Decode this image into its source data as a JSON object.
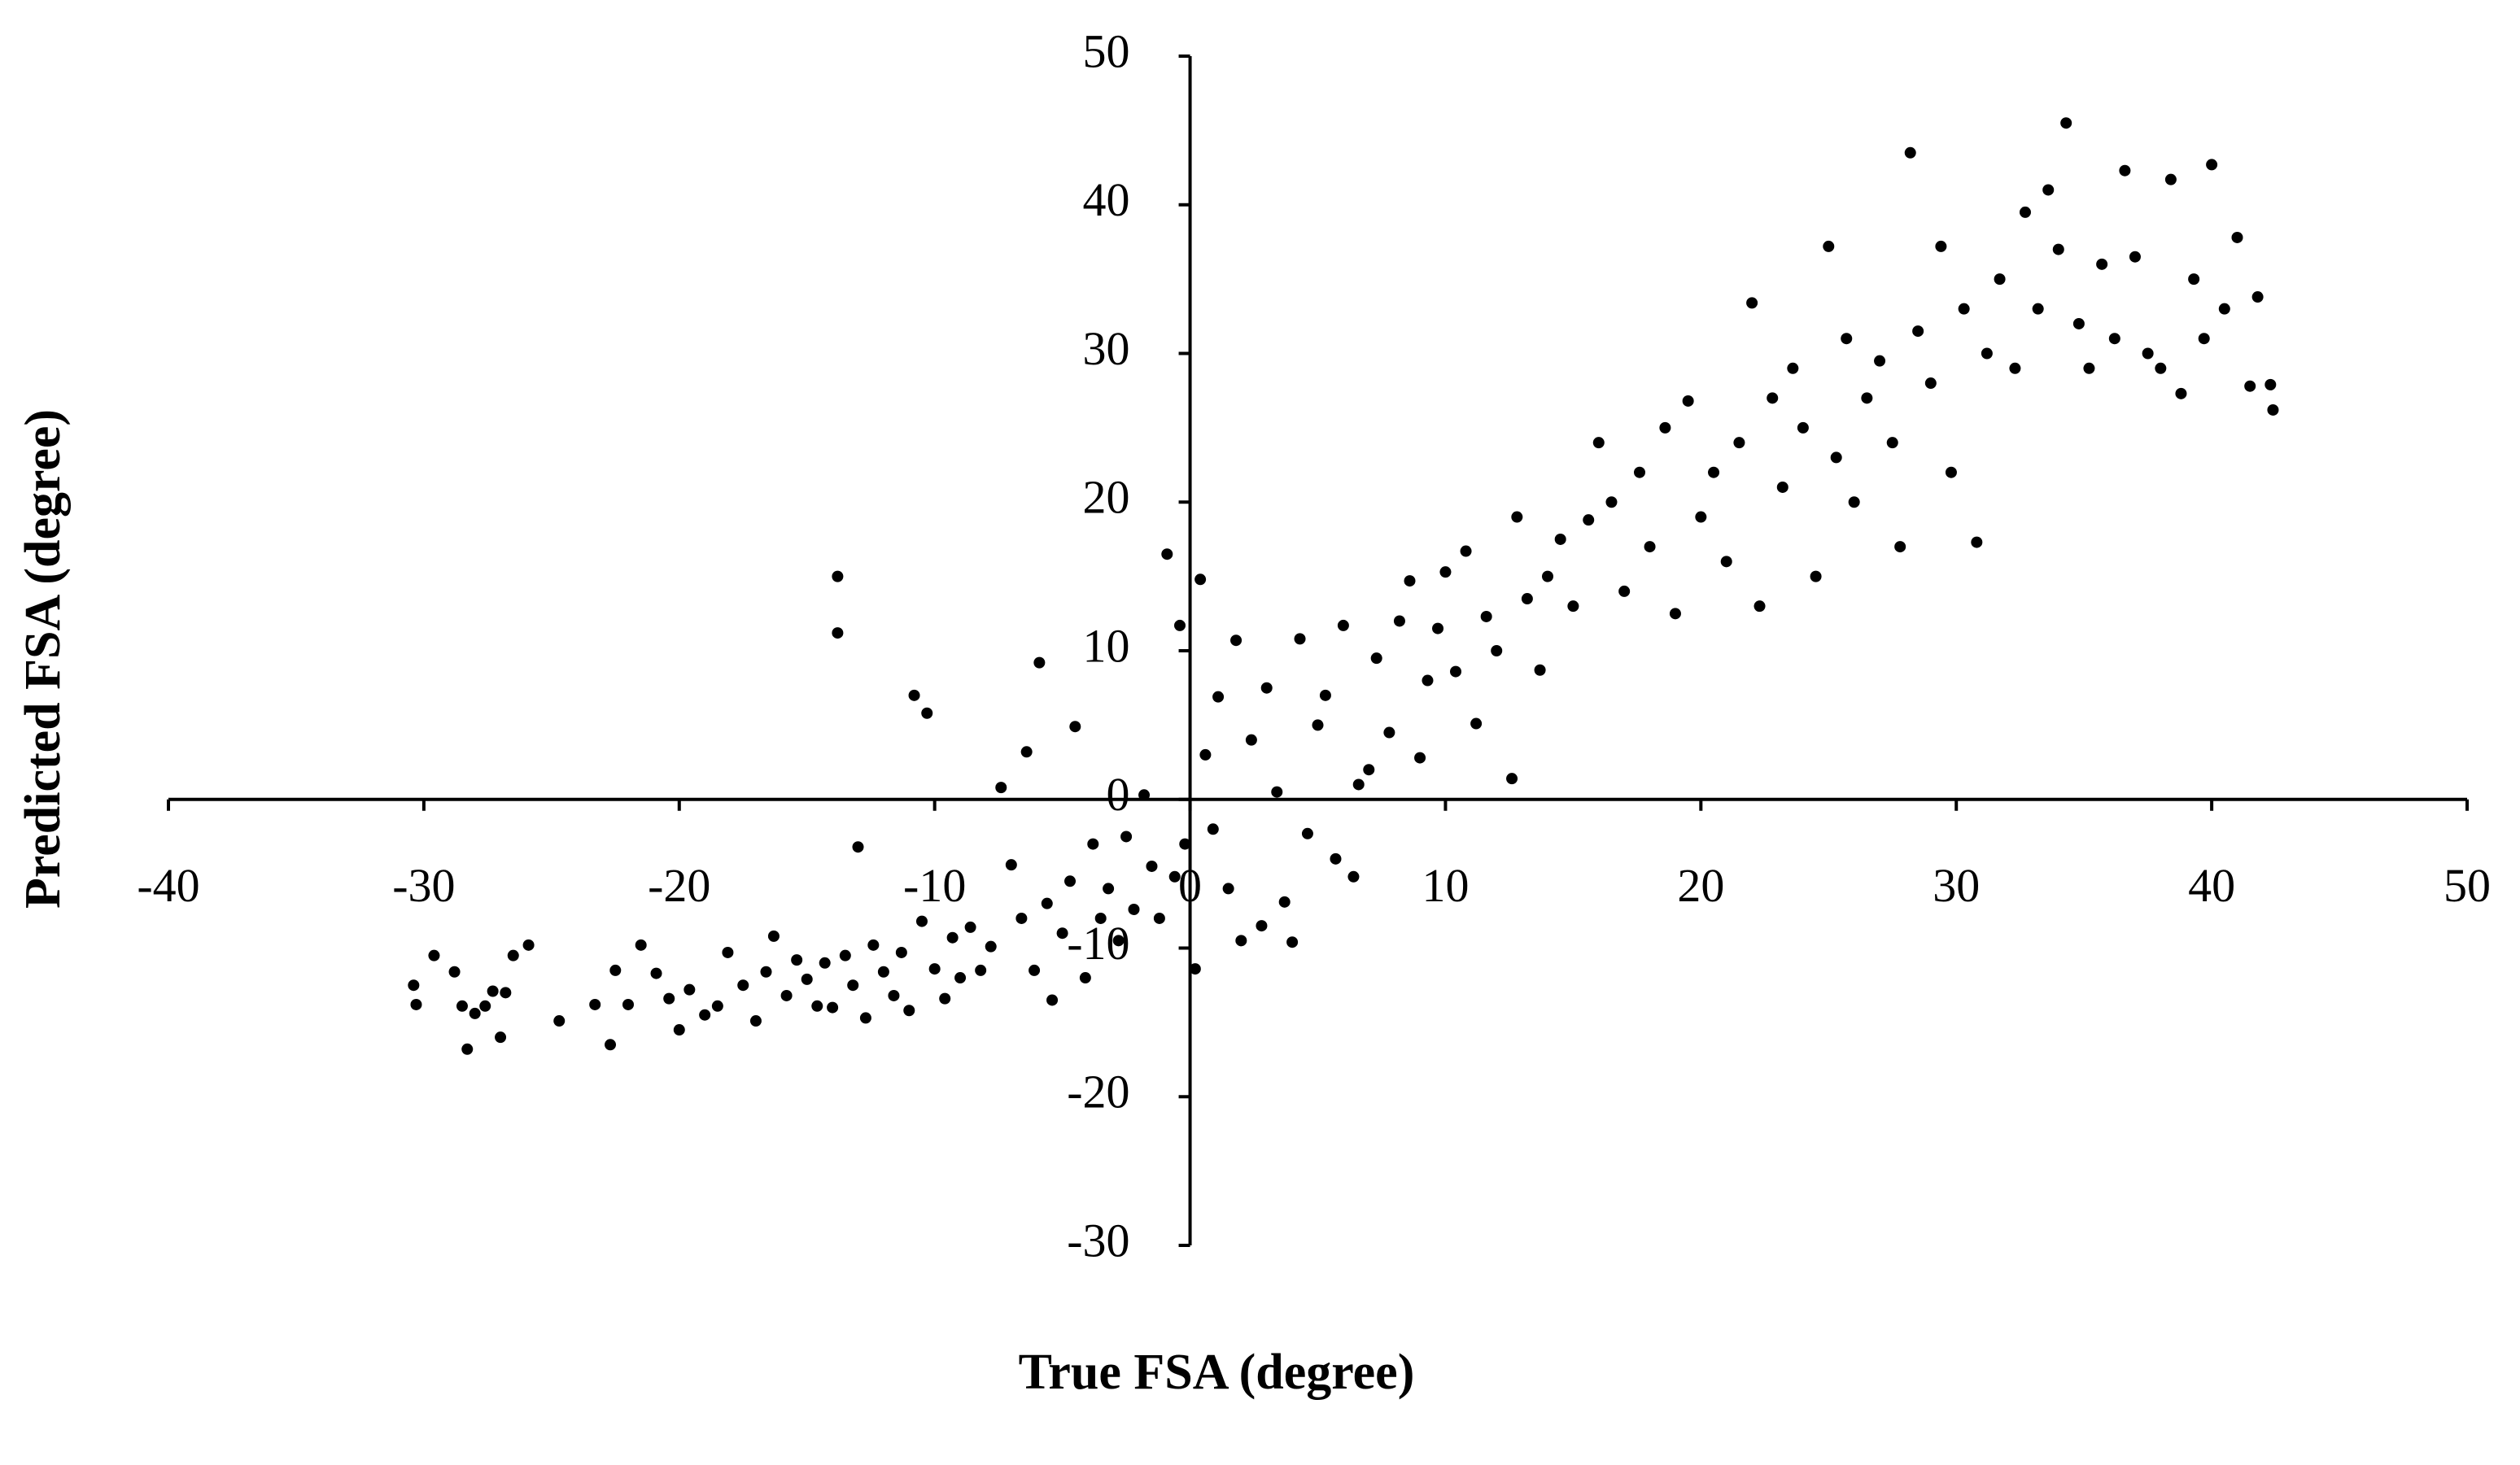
{
  "chart_data": {
    "type": "scatter",
    "x_label": "True FSA (degree)",
    "y_label": "Predicted FSA (degree)",
    "color": "#000000",
    "xlim": [
      -40,
      50
    ],
    "xticks": [
      -40,
      -30,
      -20,
      -10,
      0,
      10,
      20,
      30,
      40,
      50
    ],
    "ylim": [
      -30,
      50
    ],
    "yticks": [
      -30,
      -20,
      -10,
      0,
      10,
      20,
      30,
      40,
      50
    ],
    "grid": false,
    "x": [
      -30.4,
      -30.3,
      -29.6,
      -28.8,
      -28.5,
      -28.3,
      -28,
      -27.6,
      -27.3,
      -27,
      -26.8,
      -26.5,
      -25.9,
      -24.7,
      -23.3,
      -22.7,
      -22.5,
      -22,
      -21.5,
      -20.9,
      -20.4,
      -20,
      -19.6,
      -19,
      -18.5,
      -18.1,
      -17.5,
      -17,
      -16.6,
      -16.3,
      -15.8,
      -15.4,
      -15,
      -14.6,
      -14.3,
      -14,
      -13.8,
      -13.8,
      -13.5,
      -13.2,
      -13,
      -12.7,
      -12.4,
      -12,
      -11.6,
      -11.3,
      -11,
      -10.8,
      -10.5,
      -10.3,
      -10,
      -9.6,
      -9.3,
      -9,
      -8.6,
      -8.2,
      -7.8,
      -7.4,
      -7,
      -6.6,
      -6.4,
      -6.1,
      -5.9,
      -5.6,
      -5.4,
      -5,
      -4.7,
      -4.5,
      -4.1,
      -3.8,
      -3.5,
      -3.2,
      -2.8,
      -2.5,
      -2.2,
      -1.8,
      -1.5,
      -1.2,
      -0.9,
      -0.6,
      -0.4,
      -0.2,
      0.2,
      0.4,
      0.6,
      0.9,
      1.1,
      1.5,
      1.8,
      2,
      2.4,
      2.8,
      3,
      3.4,
      3.7,
      4,
      4.3,
      4.6,
      5,
      5.3,
      5.7,
      6,
      6.4,
      6.6,
      7,
      7.3,
      7.8,
      8.2,
      8.6,
      9,
      9.3,
      9.7,
      10,
      10.4,
      10.8,
      11.2,
      11.6,
      12,
      12.6,
      12.8,
      13.2,
      13.7,
      14,
      14.5,
      15,
      15.6,
      16,
      16.5,
      17,
      17.6,
      18,
      18.6,
      19,
      19.5,
      20,
      20.5,
      21,
      21.5,
      22,
      22.3,
      22.8,
      23.2,
      23.6,
      24,
      24.5,
      25,
      25.3,
      25.7,
      26,
      26.5,
      27,
      27.5,
      27.8,
      28.2,
      28.5,
      29,
      29.4,
      29.8,
      30.3,
      30.8,
      31.2,
      31.7,
      32.3,
      32.7,
      33.2,
      33.6,
      34,
      34.3,
      34.8,
      35.2,
      35.7,
      36.2,
      36.6,
      37,
      37.5,
      38,
      38.4,
      38.8,
      39.3,
      39.7,
      40,
      40.5,
      41,
      41.5,
      41.8,
      42.3,
      42.4
    ],
    "values": [
      -12.5,
      -13.8,
      -10.5,
      -11.6,
      -13.9,
      -16.8,
      -14.4,
      -13.9,
      -12.9,
      -16,
      -13,
      -10.5,
      -9.8,
      -14.9,
      -13.8,
      -16.5,
      -11.5,
      -13.8,
      -9.8,
      -11.7,
      -13.4,
      -15.5,
      -12.8,
      -14.5,
      -13.9,
      -10.3,
      -12.5,
      -14.9,
      -11.6,
      -9.2,
      -13.2,
      -10.8,
      -12.1,
      -13.9,
      -11,
      -14,
      15,
      11.2,
      -10.5,
      -12.5,
      -3.2,
      -14.7,
      -9.8,
      -11.6,
      -13.2,
      -10.3,
      -14.2,
      7,
      -8.2,
      5.8,
      -11.4,
      -13.4,
      -9.3,
      -12,
      -8.6,
      -11.5,
      -9.9,
      0.8,
      -4.4,
      -8,
      3.2,
      -11.5,
      9.2,
      -7,
      -13.5,
      -9,
      -5.5,
      4.9,
      -12,
      -3,
      -8,
      -6,
      -9.5,
      -2.5,
      -7.4,
      0.3,
      -4.5,
      -8,
      16.5,
      -5.2,
      11.7,
      -3,
      -11.4,
      14.8,
      3,
      -2,
      6.9,
      -6,
      10.7,
      -9.5,
      4,
      -8.5,
      7.5,
      0.5,
      -6.9,
      -9.6,
      10.8,
      -2.3,
      5,
      7,
      -4,
      11.7,
      -5.2,
      1,
      2,
      9.5,
      4.5,
      12,
      14.7,
      2.8,
      8,
      11.5,
      15.3,
      8.6,
      16.7,
      5.1,
      12.3,
      10,
      1.4,
      19,
      13.5,
      8.7,
      15,
      17.5,
      13,
      18.8,
      24,
      20,
      14,
      22,
      17,
      25,
      12.5,
      26.8,
      19,
      22,
      16,
      24,
      33.4,
      13,
      27,
      21,
      29,
      25,
      15,
      37.2,
      23,
      31,
      20,
      27,
      29.5,
      24,
      17,
      43.5,
      31.5,
      28,
      37.2,
      22,
      33,
      17.3,
      30,
      35,
      29,
      39.5,
      33,
      41,
      37,
      45.5,
      32,
      29,
      36,
      31,
      42.3,
      36.5,
      30,
      29,
      41.7,
      27.3,
      35,
      31,
      42.7,
      33,
      37.8,
      27.8,
      33.8,
      27.9,
      26.2
    ]
  }
}
